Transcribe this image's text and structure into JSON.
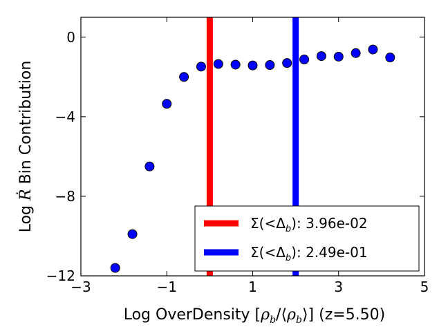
{
  "chart_data": {
    "type": "scatter",
    "title": "",
    "xlabel_prefix": "Log OverDensity [",
    "xlabel_math": "ρ_b / ⟨ρ_b⟩",
    "xlabel_suffix": "] (z=5.50)",
    "ylabel_prefix": "Log ",
    "ylabel_symbol": "Ṙ",
    "ylabel_suffix": " Bin Contribution",
    "xlim": [
      -3,
      5
    ],
    "ylim": [
      -12,
      1
    ],
    "xticks": [
      -3,
      -1,
      1,
      3,
      5
    ],
    "xtick_labels": [
      "−3",
      "−1",
      "1",
      "3",
      "5"
    ],
    "yticks": [
      0,
      -4,
      -8,
      -12
    ],
    "ytick_labels": [
      "0",
      "−4",
      "−8",
      "−12"
    ],
    "grid": false,
    "points": {
      "x": [
        -2.2,
        -1.8,
        -1.4,
        -1.0,
        -0.6,
        -0.2,
        0.2,
        0.6,
        1.0,
        1.4,
        1.8,
        2.2,
        2.6,
        3.0,
        3.4,
        3.8,
        4.2
      ],
      "y": [
        -11.6,
        -9.9,
        -6.5,
        -3.35,
        -2.0,
        -1.48,
        -1.35,
        -1.38,
        -1.42,
        -1.4,
        -1.3,
        -1.12,
        -0.95,
        -0.98,
        -0.8,
        -0.62,
        -1.02
      ],
      "color": "#0000ff"
    },
    "vlines": [
      {
        "x": 0.0,
        "color": "#ff0000",
        "label": "Σ(<Δ_b): 3.96e-02"
      },
      {
        "x": 2.0,
        "color": "#0000ff",
        "label": "Σ(<Δ_b): 2.49e-01"
      }
    ],
    "legend": {
      "placement": "lower-right",
      "entries": [
        {
          "math": "Σ(<Δ",
          "sub": "b",
          "close": ")",
          "value": ": 3.96e-02",
          "color": "#ff0000"
        },
        {
          "math": "Σ(<Δ",
          "sub": "b",
          "close": ")",
          "value": ": 2.49e-01",
          "color": "#0000ff"
        }
      ]
    }
  }
}
